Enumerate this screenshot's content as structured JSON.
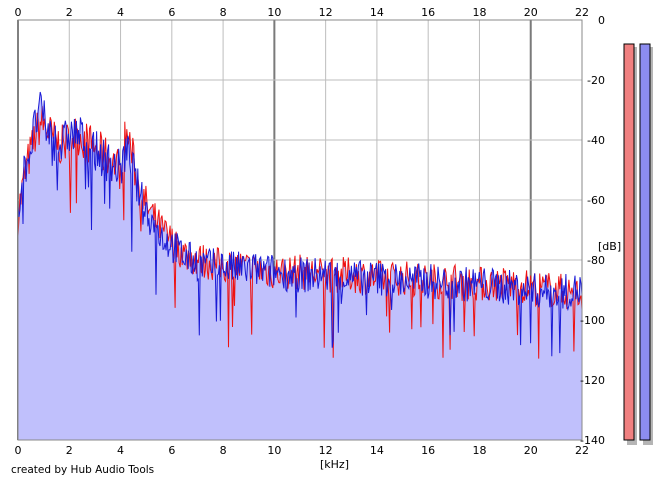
{
  "chart_data": {
    "type": "area",
    "title": "",
    "xlabel": "[kHz]",
    "ylabel": "[dB]",
    "xlim": [
      0,
      22
    ],
    "ylim": [
      -140,
      0
    ],
    "grid": true,
    "x_ticks": [
      "0",
      "2",
      "4",
      "6",
      "8",
      "10",
      "12",
      "14",
      "16",
      "18",
      "20",
      "22"
    ],
    "y_ticks": [
      "0",
      "-20",
      "-40",
      "-60",
      "-80",
      "-100",
      "-120",
      "-140"
    ],
    "footer": "created by Hub Audio Tools",
    "colors": {
      "red_series": "#ee1111",
      "blue_series": "#1a1ad6",
      "fill": "#c0c0fc",
      "meter_red": "#f08080",
      "meter_blue": "#8c8cf0",
      "grid": "#bdbdbd",
      "grid_major": "#7a7a7a"
    },
    "series": [
      {
        "color": "red",
        "x": [
          0.0,
          0.3,
          0.5,
          0.7,
          0.9,
          1.1,
          1.4,
          1.7,
          2.0,
          2.3,
          2.6,
          2.9,
          3.2,
          3.5,
          3.8,
          4.0,
          4.2,
          4.4,
          4.6,
          4.8,
          5.0,
          5.3,
          5.6,
          6.0,
          6.5,
          7.0,
          7.5,
          8.0,
          8.5,
          9.0,
          10.0,
          11.0,
          12.0,
          13.0,
          14.0,
          15.0,
          16.0,
          17.0,
          18.0,
          19.0,
          20.0,
          21.0,
          22.0
        ],
        "y": [
          -65,
          -50,
          -44,
          -38,
          -34,
          -36,
          -40,
          -42,
          -40,
          -38,
          -40,
          -42,
          -44,
          -46,
          -48,
          -50,
          -38,
          -42,
          -52,
          -58,
          -62,
          -66,
          -70,
          -74,
          -78,
          -80,
          -81,
          -82,
          -82,
          -83,
          -84,
          -84,
          -85,
          -85,
          -86,
          -86,
          -87,
          -87,
          -88,
          -88,
          -89,
          -90,
          -92
        ]
      },
      {
        "color": "blue",
        "x": [
          0.0,
          0.3,
          0.5,
          0.7,
          0.9,
          1.1,
          1.4,
          1.7,
          2.0,
          2.3,
          2.6,
          2.9,
          3.2,
          3.5,
          3.8,
          4.0,
          4.2,
          4.4,
          4.6,
          4.8,
          5.0,
          5.3,
          5.6,
          6.0,
          6.5,
          7.0,
          7.5,
          8.0,
          8.5,
          9.0,
          10.0,
          11.0,
          12.0,
          13.0,
          14.0,
          15.0,
          16.0,
          17.0,
          18.0,
          19.0,
          20.0,
          21.0,
          22.0
        ],
        "y": [
          -62,
          -48,
          -42,
          -34,
          -30,
          -36,
          -40,
          -42,
          -38,
          -38,
          -40,
          -43,
          -45,
          -47,
          -49,
          -50,
          -44,
          -46,
          -54,
          -60,
          -64,
          -68,
          -72,
          -75,
          -79,
          -81,
          -82,
          -82,
          -83,
          -83,
          -84,
          -85,
          -85,
          -86,
          -86,
          -87,
          -87,
          -88,
          -88,
          -89,
          -90,
          -91,
          -90
        ]
      }
    ],
    "meters": [
      {
        "color": "red",
        "top_db": -8,
        "bottom_db": -140
      },
      {
        "color": "blue",
        "top_db": -8,
        "bottom_db": -140
      }
    ]
  }
}
